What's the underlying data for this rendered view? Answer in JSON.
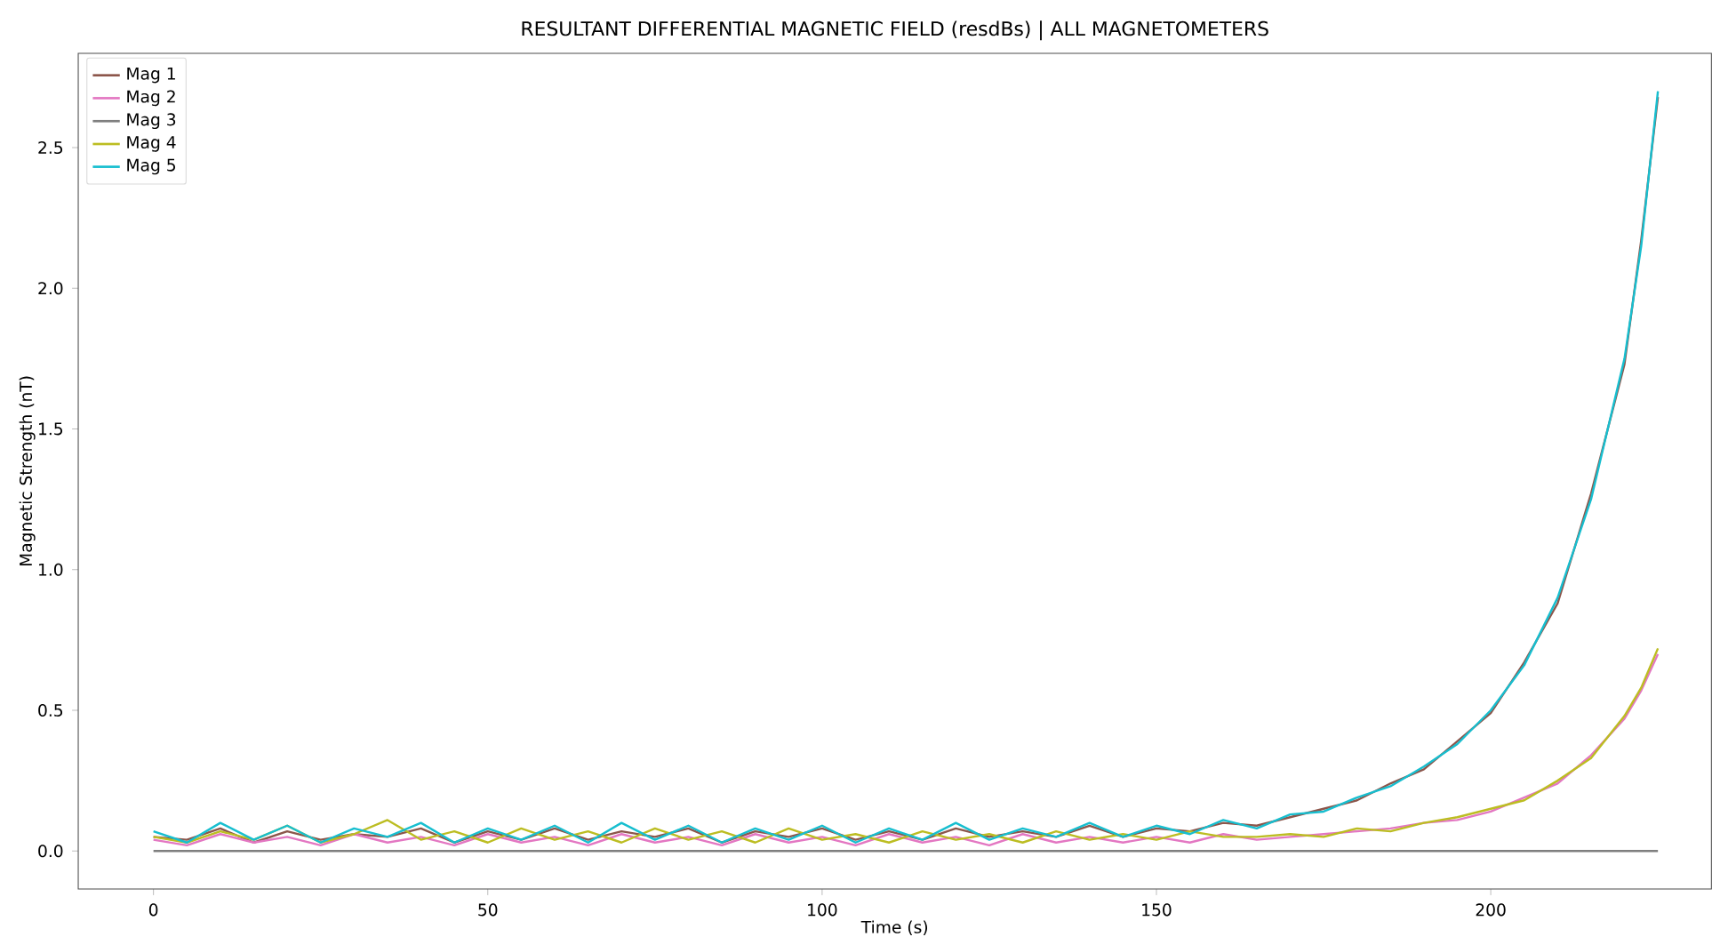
{
  "chart_data": {
    "type": "line",
    "title": "RESULTANT DIFFERENTIAL MAGNETIC FIELD (resdBs) | ALL MAGNETOMETERS",
    "xlabel": "Time (s)",
    "ylabel": "Magnetic Strength (nT)",
    "x": [
      0,
      5,
      10,
      15,
      20,
      25,
      30,
      35,
      40,
      45,
      50,
      55,
      60,
      65,
      70,
      75,
      80,
      85,
      90,
      95,
      100,
      105,
      110,
      115,
      120,
      125,
      130,
      135,
      140,
      145,
      150,
      155,
      160,
      165,
      170,
      175,
      180,
      185,
      190,
      195,
      200,
      205,
      210,
      215,
      220,
      222.5,
      225
    ],
    "series": [
      {
        "name": "Mag 1",
        "color": "#8c564b",
        "values": [
          0.05,
          0.04,
          0.08,
          0.03,
          0.07,
          0.04,
          0.06,
          0.05,
          0.08,
          0.03,
          0.07,
          0.04,
          0.08,
          0.04,
          0.07,
          0.05,
          0.08,
          0.03,
          0.07,
          0.05,
          0.08,
          0.04,
          0.07,
          0.04,
          0.08,
          0.05,
          0.07,
          0.05,
          0.09,
          0.05,
          0.08,
          0.07,
          0.1,
          0.09,
          0.12,
          0.15,
          0.18,
          0.24,
          0.29,
          0.39,
          0.49,
          0.67,
          0.88,
          1.27,
          1.73,
          2.17,
          2.68
        ]
      },
      {
        "name": "Mag 2",
        "color": "#e377c2",
        "values": [
          0.04,
          0.02,
          0.06,
          0.03,
          0.05,
          0.02,
          0.06,
          0.03,
          0.05,
          0.02,
          0.06,
          0.03,
          0.05,
          0.02,
          0.06,
          0.03,
          0.05,
          0.02,
          0.06,
          0.03,
          0.05,
          0.02,
          0.06,
          0.03,
          0.05,
          0.02,
          0.06,
          0.03,
          0.05,
          0.03,
          0.05,
          0.03,
          0.06,
          0.04,
          0.05,
          0.06,
          0.07,
          0.08,
          0.1,
          0.11,
          0.14,
          0.19,
          0.24,
          0.34,
          0.47,
          0.57,
          0.7
        ]
      },
      {
        "name": "Mag 3",
        "color": "#7f7f7f",
        "x": [
          0,
          225
        ],
        "values": [
          0,
          0
        ]
      },
      {
        "name": "Mag 4",
        "color": "#bcbd22",
        "values": [
          0.05,
          0.03,
          0.07,
          0.04,
          0.09,
          0.03,
          0.06,
          0.11,
          0.04,
          0.07,
          0.03,
          0.08,
          0.04,
          0.07,
          0.03,
          0.08,
          0.04,
          0.07,
          0.03,
          0.08,
          0.04,
          0.06,
          0.03,
          0.07,
          0.04,
          0.06,
          0.03,
          0.07,
          0.04,
          0.06,
          0.04,
          0.07,
          0.05,
          0.05,
          0.06,
          0.05,
          0.08,
          0.07,
          0.1,
          0.12,
          0.15,
          0.18,
          0.25,
          0.33,
          0.48,
          0.58,
          0.72
        ]
      },
      {
        "name": "Mag 5",
        "color": "#17becf",
        "values": [
          0.07,
          0.03,
          0.1,
          0.04,
          0.09,
          0.03,
          0.08,
          0.05,
          0.1,
          0.03,
          0.08,
          0.04,
          0.09,
          0.03,
          0.1,
          0.04,
          0.09,
          0.03,
          0.08,
          0.04,
          0.09,
          0.03,
          0.08,
          0.04,
          0.1,
          0.04,
          0.08,
          0.05,
          0.1,
          0.05,
          0.09,
          0.06,
          0.11,
          0.08,
          0.13,
          0.14,
          0.19,
          0.23,
          0.3,
          0.38,
          0.5,
          0.66,
          0.9,
          1.25,
          1.75,
          2.15,
          2.7
        ]
      }
    ],
    "xlim": [
      -11.25,
      233
    ],
    "ylim": [
      -0.135,
      2.835
    ],
    "xticks": [
      0,
      50,
      100,
      150,
      200
    ],
    "yticks": [
      {
        "value": 0,
        "label": "0.0"
      },
      0.5,
      {
        "value": 1,
        "label": "1.0"
      },
      1.5,
      {
        "value": 2,
        "label": "2.0"
      },
      2.5
    ],
    "legend": "top left",
    "grid": false
  }
}
